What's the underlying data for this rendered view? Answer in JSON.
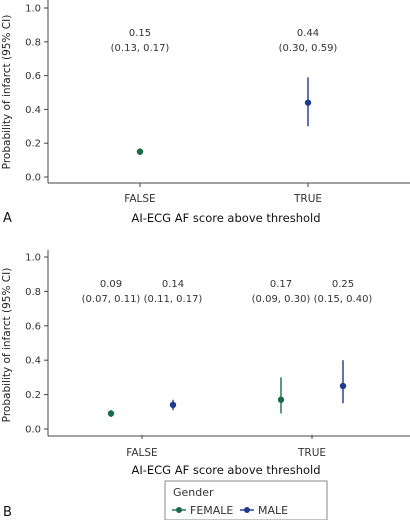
{
  "panels": {
    "a_label": "A",
    "b_label": "B"
  },
  "legend": {
    "title": "Gender",
    "items": [
      {
        "name": "FEMALE",
        "color": "#1a6b47"
      },
      {
        "name": "MALE",
        "color": "#1f3a8c"
      }
    ]
  },
  "chart_data": [
    {
      "type": "scatter",
      "panel": "A",
      "xlabel": "AI-ECG AF score above threshold",
      "ylabel": "Probability of infarct (95% CI)",
      "categories": [
        "FALSE",
        "TRUE"
      ],
      "ylim": [
        0,
        1.0
      ],
      "yticks": [
        "0.0",
        "0.2",
        "0.4",
        "0.6",
        "0.8",
        "1.0"
      ],
      "grid": false,
      "series": [
        {
          "values": [
            0.15,
            0.44
          ],
          "lower": [
            0.13,
            0.3
          ],
          "upper": [
            0.17,
            0.59
          ],
          "colors": [
            "#1a6b47",
            "#1f3a8c"
          ]
        }
      ],
      "annotations": [
        {
          "category": "FALSE",
          "estimate": "0.15",
          "ci": "(0.13, 0.17)"
        },
        {
          "category": "TRUE",
          "estimate": "0.44",
          "ci": "(0.30, 0.59)"
        }
      ]
    },
    {
      "type": "scatter",
      "panel": "B",
      "xlabel": "AI-ECG AF score above threshold",
      "ylabel": "Probability of infarct (95% CI)",
      "categories": [
        "FALSE",
        "TRUE"
      ],
      "ylim": [
        0,
        1.0
      ],
      "yticks": [
        "0.0",
        "0.2",
        "0.4",
        "0.6",
        "0.8",
        "1.0"
      ],
      "grid": false,
      "legend_position": "bottom",
      "series": [
        {
          "name": "FEMALE",
          "color": "#1a6b47",
          "values": [
            0.09,
            0.17
          ],
          "lower": [
            0.07,
            0.09
          ],
          "upper": [
            0.11,
            0.3
          ]
        },
        {
          "name": "MALE",
          "color": "#1f3a8c",
          "values": [
            0.14,
            0.25
          ],
          "lower": [
            0.11,
            0.15
          ],
          "upper": [
            0.17,
            0.4
          ]
        }
      ],
      "annotations": [
        {
          "category": "FALSE",
          "series": "FEMALE",
          "estimate": "0.09",
          "ci": "(0.07, 0.11)"
        },
        {
          "category": "FALSE",
          "series": "MALE",
          "estimate": "0.14",
          "ci": "(0.11, 0.17)"
        },
        {
          "category": "TRUE",
          "series": "FEMALE",
          "estimate": "0.17",
          "ci": "(0.09, 0.30)"
        },
        {
          "category": "TRUE",
          "series": "MALE",
          "estimate": "0.25",
          "ci": "(0.15, 0.40)"
        }
      ]
    }
  ]
}
